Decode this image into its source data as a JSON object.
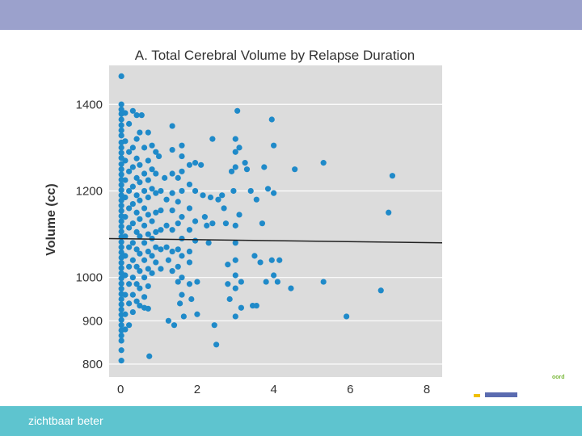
{
  "slide": {
    "footer_text": "zichtbaar beter",
    "side_word": "oord"
  },
  "colors": {
    "top_bar": "#9ba1cc",
    "bottom_bar": "#5ec4cf",
    "plot_background": "#dcdcdc",
    "point": "#1f8ac9",
    "fit_line": "#222222"
  },
  "chart_data": {
    "type": "scatter",
    "title": "A. Total Cerebral Volume by Relapse Duration",
    "xlabel": "",
    "ylabel": "Volume (cc)",
    "xlim": [
      -0.3,
      8.4
    ],
    "ylim": [
      770,
      1490
    ],
    "xticks": [
      0,
      2,
      4,
      6,
      8
    ],
    "yticks": [
      800,
      900,
      1000,
      1200,
      1400
    ],
    "grid": true,
    "fit_line": {
      "x": [
        -0.3,
        8.4
      ],
      "y": [
        1090,
        1080
      ]
    },
    "points": [
      [
        0.02,
        1465
      ],
      [
        0.02,
        1400
      ],
      [
        0.02,
        1388
      ],
      [
        0.02,
        1378
      ],
      [
        0.02,
        1365
      ],
      [
        0.02,
        1352
      ],
      [
        0.02,
        1340
      ],
      [
        0.02,
        1328
      ],
      [
        0.02,
        1312
      ],
      [
        0.02,
        1300
      ],
      [
        0.02,
        1288
      ],
      [
        0.02,
        1276
      ],
      [
        0.02,
        1262
      ],
      [
        0.02,
        1250
      ],
      [
        0.02,
        1238
      ],
      [
        0.02,
        1226
      ],
      [
        0.02,
        1214
      ],
      [
        0.02,
        1202
      ],
      [
        0.02,
        1190
      ],
      [
        0.02,
        1178
      ],
      [
        0.02,
        1166
      ],
      [
        0.02,
        1154
      ],
      [
        0.02,
        1142
      ],
      [
        0.02,
        1130
      ],
      [
        0.02,
        1118
      ],
      [
        0.02,
        1106
      ],
      [
        0.02,
        1094
      ],
      [
        0.02,
        1082
      ],
      [
        0.02,
        1070
      ],
      [
        0.02,
        1058
      ],
      [
        0.02,
        1046
      ],
      [
        0.02,
        1034
      ],
      [
        0.02,
        1022
      ],
      [
        0.02,
        1010
      ],
      [
        0.02,
        998
      ],
      [
        0.02,
        986
      ],
      [
        0.02,
        974
      ],
      [
        0.02,
        962
      ],
      [
        0.02,
        950
      ],
      [
        0.02,
        938
      ],
      [
        0.02,
        926
      ],
      [
        0.02,
        914
      ],
      [
        0.02,
        902
      ],
      [
        0.02,
        890
      ],
      [
        0.02,
        878
      ],
      [
        0.02,
        866
      ],
      [
        0.02,
        854
      ],
      [
        0.02,
        832
      ],
      [
        0.02,
        808
      ],
      [
        0.12,
        1380
      ],
      [
        0.12,
        1315
      ],
      [
        0.12,
        1270
      ],
      [
        0.12,
        1225
      ],
      [
        0.12,
        1185
      ],
      [
        0.12,
        1140
      ],
      [
        0.12,
        1095
      ],
      [
        0.12,
        1050
      ],
      [
        0.12,
        1005
      ],
      [
        0.12,
        960
      ],
      [
        0.12,
        915
      ],
      [
        0.12,
        880
      ],
      [
        0.22,
        1355
      ],
      [
        0.22,
        1290
      ],
      [
        0.22,
        1245
      ],
      [
        0.22,
        1200
      ],
      [
        0.22,
        1160
      ],
      [
        0.22,
        1115
      ],
      [
        0.22,
        1070
      ],
      [
        0.22,
        1025
      ],
      [
        0.22,
        985
      ],
      [
        0.22,
        940
      ],
      [
        0.22,
        890
      ],
      [
        0.32,
        1385
      ],
      [
        0.32,
        1300
      ],
      [
        0.32,
        1255
      ],
      [
        0.32,
        1210
      ],
      [
        0.32,
        1170
      ],
      [
        0.32,
        1125
      ],
      [
        0.32,
        1080
      ],
      [
        0.32,
        1040
      ],
      [
        0.32,
        1000
      ],
      [
        0.32,
        960
      ],
      [
        0.32,
        920
      ],
      [
        0.42,
        1375
      ],
      [
        0.42,
        1320
      ],
      [
        0.42,
        1275
      ],
      [
        0.42,
        1230
      ],
      [
        0.42,
        1190
      ],
      [
        0.42,
        1150
      ],
      [
        0.42,
        1105
      ],
      [
        0.42,
        1065
      ],
      [
        0.42,
        1025
      ],
      [
        0.42,
        985
      ],
      [
        0.42,
        945
      ],
      [
        0.5,
        1335
      ],
      [
        0.5,
        1260
      ],
      [
        0.5,
        1220
      ],
      [
        0.5,
        1178
      ],
      [
        0.5,
        1135
      ],
      [
        0.5,
        1095
      ],
      [
        0.5,
        1055
      ],
      [
        0.5,
        1015
      ],
      [
        0.5,
        975
      ],
      [
        0.5,
        935
      ],
      [
        0.55,
        1375
      ],
      [
        0.62,
        1300
      ],
      [
        0.62,
        1240
      ],
      [
        0.62,
        1200
      ],
      [
        0.62,
        1160
      ],
      [
        0.62,
        1120
      ],
      [
        0.62,
        1080
      ],
      [
        0.62,
        1040
      ],
      [
        0.62,
        1000
      ],
      [
        0.62,
        955
      ],
      [
        0.62,
        930
      ],
      [
        0.72,
        1335
      ],
      [
        0.72,
        1270
      ],
      [
        0.72,
        1225
      ],
      [
        0.72,
        1185
      ],
      [
        0.72,
        1145
      ],
      [
        0.72,
        1100
      ],
      [
        0.72,
        1060
      ],
      [
        0.72,
        1020
      ],
      [
        0.72,
        980
      ],
      [
        0.72,
        928
      ],
      [
        0.75,
        818
      ],
      [
        0.82,
        1305
      ],
      [
        0.82,
        1250
      ],
      [
        0.82,
        1205
      ],
      [
        0.82,
        1130
      ],
      [
        0.82,
        1090
      ],
      [
        0.82,
        1050
      ],
      [
        0.82,
        1010
      ],
      [
        0.92,
        1290
      ],
      [
        0.92,
        1240
      ],
      [
        0.92,
        1195
      ],
      [
        0.92,
        1150
      ],
      [
        0.92,
        1105
      ],
      [
        0.92,
        1070
      ],
      [
        0.92,
        1035
      ],
      [
        1.0,
        1280
      ],
      [
        1.05,
        1200
      ],
      [
        1.05,
        1155
      ],
      [
        1.05,
        1110
      ],
      [
        1.05,
        1065
      ],
      [
        1.05,
        1020
      ],
      [
        1.15,
        1230
      ],
      [
        1.2,
        1180
      ],
      [
        1.2,
        1120
      ],
      [
        1.2,
        1070
      ],
      [
        1.25,
        1040
      ],
      [
        1.25,
        900
      ],
      [
        1.35,
        1350
      ],
      [
        1.35,
        1295
      ],
      [
        1.35,
        1240
      ],
      [
        1.35,
        1195
      ],
      [
        1.35,
        1155
      ],
      [
        1.35,
        1110
      ],
      [
        1.35,
        1060
      ],
      [
        1.35,
        1015
      ],
      [
        1.4,
        890
      ],
      [
        1.5,
        1230
      ],
      [
        1.5,
        1175
      ],
      [
        1.5,
        1125
      ],
      [
        1.5,
        1065
      ],
      [
        1.5,
        1025
      ],
      [
        1.5,
        990
      ],
      [
        1.55,
        940
      ],
      [
        1.6,
        1305
      ],
      [
        1.6,
        1280
      ],
      [
        1.6,
        1245
      ],
      [
        1.6,
        1200
      ],
      [
        1.6,
        1140
      ],
      [
        1.6,
        1090
      ],
      [
        1.6,
        1050
      ],
      [
        1.6,
        1000
      ],
      [
        1.6,
        960
      ],
      [
        1.65,
        910
      ],
      [
        1.8,
        1260
      ],
      [
        1.8,
        1215
      ],
      [
        1.8,
        1160
      ],
      [
        1.8,
        1110
      ],
      [
        1.8,
        1060
      ],
      [
        1.8,
        1035
      ],
      [
        1.8,
        985
      ],
      [
        1.85,
        950
      ],
      [
        1.95,
        1265
      ],
      [
        1.95,
        1200
      ],
      [
        1.95,
        1130
      ],
      [
        1.95,
        1085
      ],
      [
        2.0,
        990
      ],
      [
        2.0,
        915
      ],
      [
        2.1,
        1260
      ],
      [
        2.15,
        1190
      ],
      [
        2.2,
        1140
      ],
      [
        2.25,
        1120
      ],
      [
        2.3,
        1080
      ],
      [
        2.35,
        1185
      ],
      [
        2.4,
        1320
      ],
      [
        2.4,
        1125
      ],
      [
        2.45,
        890
      ],
      [
        2.5,
        845
      ],
      [
        2.55,
        1180
      ],
      [
        2.65,
        1190
      ],
      [
        2.7,
        1160
      ],
      [
        2.75,
        1125
      ],
      [
        2.8,
        1030
      ],
      [
        2.8,
        985
      ],
      [
        2.85,
        950
      ],
      [
        2.9,
        1245
      ],
      [
        2.95,
        1200
      ],
      [
        3.0,
        1320
      ],
      [
        3.0,
        1290
      ],
      [
        3.0,
        1255
      ],
      [
        3.0,
        1120
      ],
      [
        3.0,
        1080
      ],
      [
        3.0,
        1040
      ],
      [
        3.0,
        1005
      ],
      [
        3.0,
        975
      ],
      [
        3.0,
        910
      ],
      [
        3.05,
        1385
      ],
      [
        3.1,
        1300
      ],
      [
        3.1,
        1145
      ],
      [
        3.15,
        990
      ],
      [
        3.15,
        930
      ],
      [
        3.25,
        1265
      ],
      [
        3.3,
        1250
      ],
      [
        3.4,
        1200
      ],
      [
        3.45,
        935
      ],
      [
        3.5,
        1050
      ],
      [
        3.55,
        935
      ],
      [
        3.55,
        1180
      ],
      [
        3.65,
        1035
      ],
      [
        3.7,
        1125
      ],
      [
        3.75,
        1255
      ],
      [
        3.8,
        990
      ],
      [
        3.85,
        1205
      ],
      [
        3.95,
        1365
      ],
      [
        3.95,
        1040
      ],
      [
        4.0,
        1305
      ],
      [
        4.0,
        1195
      ],
      [
        4.0,
        1005
      ],
      [
        4.1,
        990
      ],
      [
        4.15,
        1040
      ],
      [
        4.45,
        975
      ],
      [
        4.55,
        1250
      ],
      [
        5.3,
        1265
      ],
      [
        5.3,
        990
      ],
      [
        5.9,
        910
      ],
      [
        6.8,
        970
      ],
      [
        7.0,
        1150
      ],
      [
        7.1,
        1235
      ]
    ]
  }
}
